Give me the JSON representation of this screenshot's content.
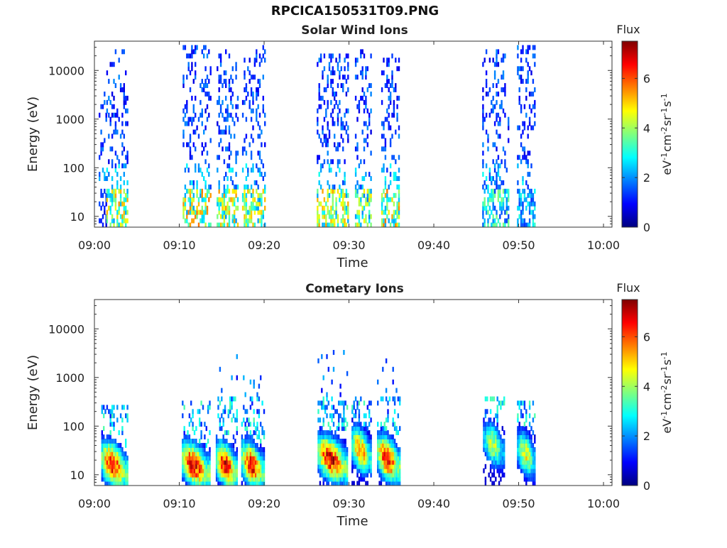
{
  "figure": {
    "title": "RPCICA150531T09.PNG"
  },
  "colormap": {
    "name": "jet",
    "stops": [
      "#00007f",
      "#0000ff",
      "#007fff",
      "#00ffff",
      "#7fff7f",
      "#ffff00",
      "#ff7f00",
      "#ff0000",
      "#7f0000"
    ],
    "range": [
      0,
      7.5
    ]
  },
  "chart_data": [
    {
      "type": "heatmap",
      "title": "Solar Wind Ions",
      "xlabel": "Time",
      "ylabel": "Energy (eV)",
      "x_range": [
        "09:00",
        "10:01"
      ],
      "x_ticks": [
        "09:00",
        "09:10",
        "09:20",
        "09:30",
        "09:40",
        "09:50",
        "10:00"
      ],
      "y_scale": "log",
      "y_range": [
        6,
        40000
      ],
      "y_ticks": [
        "10",
        "100",
        "1000",
        "10000"
      ],
      "colorbar": {
        "label": "Flux",
        "unit": "eV-1 cm-2 sr-1 s-1",
        "ticks": [
          "0",
          "2",
          "4",
          "6"
        ],
        "range": [
          0,
          7.5
        ]
      },
      "bursts": [
        {
          "start": "09:00.5",
          "end": "09:01.3",
          "emax": 4000,
          "low_energy_flux": 1.5
        },
        {
          "start": "09:01.4",
          "end": "09:03.9",
          "emax": 25000,
          "low_energy_flux": 5.0
        },
        {
          "start": "09:10.4",
          "end": "09:13.6",
          "emax": 30000,
          "low_energy_flux": 5.2
        },
        {
          "start": "09:14.4",
          "end": "09:16.8",
          "emax": 25000,
          "low_energy_flux": 5.0
        },
        {
          "start": "09:17.4",
          "end": "09:20.0",
          "emax": 35000,
          "low_energy_flux": 4.8
        },
        {
          "start": "09:26.2",
          "end": "09:29.8",
          "emax": 20000,
          "low_energy_flux": 5.0
        },
        {
          "start": "09:30.7",
          "end": "09:32.7",
          "emax": 28000,
          "low_energy_flux": 4.5
        },
        {
          "start": "09:33.8",
          "end": "09:36.0",
          "emax": 25000,
          "low_energy_flux": 5.2
        },
        {
          "start": "09:45.7",
          "end": "09:48.8",
          "emax": 28000,
          "low_energy_flux": 3.5
        },
        {
          "start": "09:49.8",
          "end": "09:52.0",
          "emax": 30000,
          "low_energy_flux": 3.0
        }
      ]
    },
    {
      "type": "heatmap",
      "title": "Cometary Ions",
      "xlabel": "Time",
      "ylabel": "Energy (eV)",
      "x_range": [
        "09:00",
        "10:01"
      ],
      "x_ticks": [
        "09:00",
        "09:10",
        "09:20",
        "09:30",
        "09:40",
        "09:50",
        "10:00"
      ],
      "y_scale": "log",
      "y_range": [
        6,
        40000
      ],
      "y_ticks": [
        "10",
        "100",
        "1000",
        "10000"
      ],
      "colorbar": {
        "label": "Flux",
        "unit": "eV-1 cm-2 sr-1 s-1",
        "ticks": [
          "0",
          "2",
          "4",
          "6"
        ],
        "range": [
          0,
          7.5
        ]
      },
      "bursts": [
        {
          "start": "09:00.8",
          "end": "09:03.9",
          "peak_energy": 15,
          "peak_flux": 7.2,
          "emax": 250
        },
        {
          "start": "09:10.3",
          "end": "09:13.5",
          "peak_energy": 15,
          "peak_flux": 7.3,
          "emax": 350
        },
        {
          "start": "09:14.3",
          "end": "09:16.8",
          "peak_energy": 15,
          "peak_flux": 7.2,
          "emax": 3000
        },
        {
          "start": "09:17.3",
          "end": "09:20.0",
          "peak_energy": 15,
          "peak_flux": 7.0,
          "emax": 1200
        },
        {
          "start": "09:26.3",
          "end": "09:29.8",
          "peak_energy": 20,
          "peak_flux": 7.3,
          "emax": 4000
        },
        {
          "start": "09:30.3",
          "end": "09:32.6",
          "peak_energy": 30,
          "peak_flux": 6.0,
          "emax": 500
        },
        {
          "start": "09:33.3",
          "end": "09:36.0",
          "peak_energy": 20,
          "peak_flux": 7.2,
          "emax": 3800
        },
        {
          "start": "09:45.8",
          "end": "09:48.3",
          "peak_energy": 40,
          "peak_flux": 4.5,
          "emax": 400
        },
        {
          "start": "09:49.8",
          "end": "09:52.0",
          "peak_energy": 25,
          "peak_flux": 5.0,
          "emax": 300
        }
      ]
    }
  ]
}
